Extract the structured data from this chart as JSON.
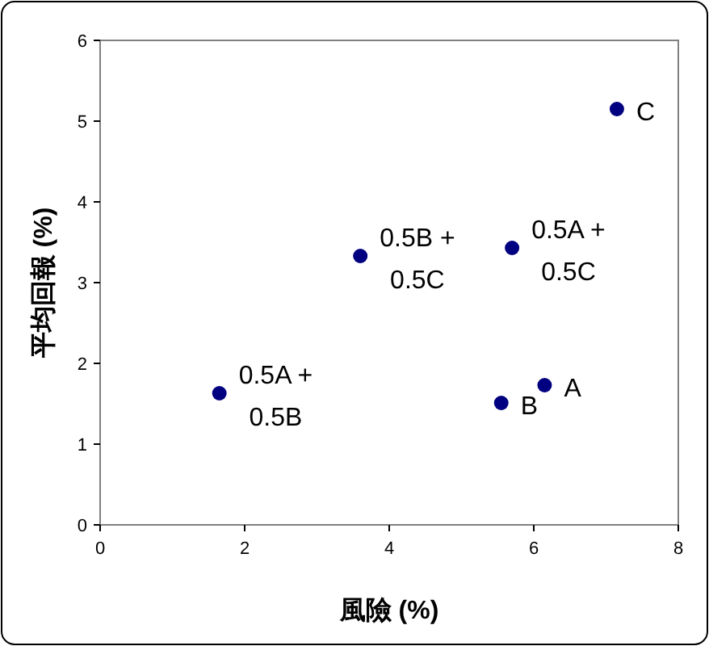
{
  "chart_data": {
    "type": "scatter",
    "xlabel": "風險 (%)",
    "ylabel": "平均回報 (%)",
    "x": [
      6.15,
      5.55,
      7.15,
      1.65,
      3.6,
      5.7
    ],
    "series": [
      {
        "color": "#000080",
        "values": [
          1.73,
          1.51,
          5.15,
          1.63,
          3.33,
          3.43
        ]
      }
    ],
    "marker": "circle",
    "xlim": [
      0,
      8
    ],
    "ylim": [
      0,
      6
    ],
    "xticks": [
      0,
      2,
      4,
      6,
      8
    ],
    "yticks": [
      0,
      1,
      2,
      3,
      4,
      5,
      6
    ],
    "annotations": [
      {
        "text": "A",
        "x": 6.15,
        "y": 1.73
      },
      {
        "text": "B",
        "x": 5.55,
        "y": 1.51
      },
      {
        "text": "C",
        "x": 7.15,
        "y": 5.15
      },
      {
        "text": "0.5A +\n0.5B",
        "x": 1.65,
        "y": 1.63
      },
      {
        "text": "0.5B +\n0.5C",
        "x": 3.6,
        "y": 3.33
      },
      {
        "text": "0.5A +\n0.5C",
        "x": 5.7,
        "y": 3.43
      }
    ]
  }
}
